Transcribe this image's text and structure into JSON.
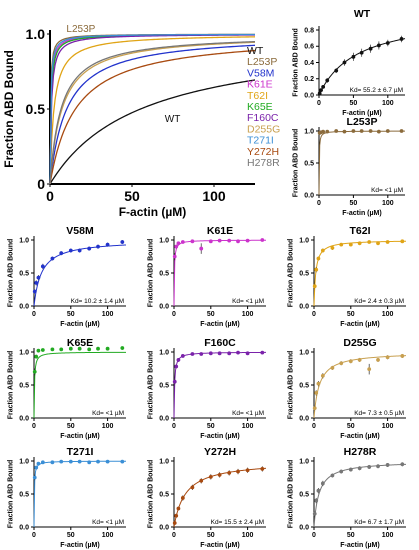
{
  "chart_data": [
    {
      "id": "main",
      "type": "line",
      "title": "",
      "xlabel": "F-actin (µM)",
      "ylabel": "Fraction ABD Bound",
      "xlim": [
        0,
        125
      ],
      "ylim": [
        0,
        1.0
      ],
      "xticks": [
        0,
        50,
        100
      ],
      "yticks": [
        0,
        0.5,
        1.0
      ],
      "ytick_labels": [
        "0",
        "0.5",
        "1.0"
      ],
      "grid": false,
      "legend_position": "right",
      "series": [
        {
          "name": "WT",
          "kd": 55.2,
          "color": "#111111"
        },
        {
          "name": "L253P",
          "kd": 0.3,
          "color": "#8b6b3c"
        },
        {
          "name": "V58M",
          "kd": 10.2,
          "color": "#2233cc"
        },
        {
          "name": "K61E",
          "kd": 0.5,
          "color": "#cc33cc"
        },
        {
          "name": "T62I",
          "kd": 2.4,
          "color": "#e0a416"
        },
        {
          "name": "K65E",
          "kd": 0.6,
          "color": "#22aa22"
        },
        {
          "name": "F160C",
          "kd": 0.8,
          "color": "#7a22aa"
        },
        {
          "name": "D255G",
          "kd": 7.3,
          "color": "#c8a050"
        },
        {
          "name": "T271I",
          "kd": 0.4,
          "color": "#3b8fd6"
        },
        {
          "name": "Y272H",
          "kd": 15.5,
          "color": "#a84a10"
        },
        {
          "name": "H278R",
          "kd": 6.7,
          "color": "#777777"
        }
      ],
      "annotations": [
        {
          "text": "WT",
          "x": 70,
          "y": 0.4
        },
        {
          "text": "L253P",
          "x": 10,
          "y": 1.0
        }
      ]
    },
    {
      "id": "WT",
      "type": "scatter",
      "title": "WT",
      "xlabel": "F-actin (µM)",
      "ylabel": "Fraction ABD Bound",
      "xlim": [
        0,
        125
      ],
      "ylim": [
        0,
        0.8
      ],
      "xticks": [
        0,
        50,
        100
      ],
      "yticks": [
        0,
        0.2,
        0.4,
        0.6,
        0.8
      ],
      "ytick_labels": [
        "0.0",
        "0.2",
        "0.4",
        "0.6",
        "0.8"
      ],
      "kd": 55.2,
      "bmax": 1.0,
      "kd_label": "Kd= 55.2 ± 6.7 µM",
      "color": "#111111",
      "x": [
        1,
        3,
        6,
        12,
        25,
        37,
        50,
        62,
        75,
        87,
        100,
        120
      ],
      "y": [
        0.02,
        0.06,
        0.1,
        0.18,
        0.3,
        0.4,
        0.47,
        0.52,
        0.57,
        0.61,
        0.64,
        0.69
      ],
      "err": [
        0.01,
        0.02,
        0.02,
        0.03,
        0.03,
        0.04,
        0.05,
        0.05,
        0.05,
        0.05,
        0.04,
        0.04
      ]
    },
    {
      "id": "L253P",
      "type": "scatter",
      "title": "L253P",
      "xlabel": "F-actin (µM)",
      "ylabel": "Fraction ABD Bound",
      "xlim": [
        0,
        125
      ],
      "ylim": [
        0,
        1.0
      ],
      "xticks": [
        0,
        50,
        100
      ],
      "yticks": [
        0,
        0.5,
        1.0
      ],
      "ytick_labels": [
        "0.0",
        "0.5",
        "1.0"
      ],
      "kd": 0.3,
      "bmax": 1.0,
      "kd_label": "Kd= <1 µM",
      "color": "#8b6b3c",
      "x": [
        1,
        3,
        6,
        12,
        25,
        37,
        50,
        62,
        75,
        87,
        100,
        120
      ],
      "y": [
        0.97,
        0.98,
        0.99,
        0.99,
        1.0,
        0.99,
        1.0,
        1.0,
        1.0,
        0.99,
        1.0,
        1.0
      ],
      "err": [
        0.02,
        0.01,
        0.01,
        0.01,
        0.01,
        0.01,
        0.01,
        0.01,
        0.01,
        0.01,
        0.01,
        0.01
      ]
    },
    {
      "id": "V58M",
      "type": "scatter",
      "title": "V58M",
      "xlabel": "F-actin (µM)",
      "ylabel": "Fraction ABD Bound",
      "xlim": [
        0,
        125
      ],
      "ylim": [
        0,
        1.0
      ],
      "xticks": [
        0,
        50,
        100
      ],
      "yticks": [
        0,
        0.5,
        1.0
      ],
      "ytick_labels": [
        "0.0",
        "0.5",
        "1.0"
      ],
      "kd": 10.2,
      "bmax": 1.0,
      "kd_label": "Kd= 10.2 ± 1.4 µM",
      "color": "#2233cc",
      "x": [
        1,
        3,
        6,
        12,
        25,
        37,
        50,
        62,
        75,
        87,
        100,
        120
      ],
      "y": [
        0.22,
        0.35,
        0.43,
        0.6,
        0.72,
        0.8,
        0.84,
        0.84,
        0.87,
        0.9,
        0.93,
        0.97
      ],
      "err": [
        0.03,
        0.04,
        0.04,
        0.04,
        0.03,
        0.03,
        0.03,
        0.03,
        0.03,
        0.03,
        0.03,
        0.03
      ]
    },
    {
      "id": "K61E",
      "type": "scatter",
      "title": "K61E",
      "xlabel": "F-actin (µM)",
      "ylabel": "Fraction ABD Bound",
      "xlim": [
        0,
        125
      ],
      "ylim": [
        0,
        1.0
      ],
      "xticks": [
        0,
        50,
        100
      ],
      "yticks": [
        0,
        0.5,
        1.0
      ],
      "ytick_labels": [
        "0.0",
        "0.5",
        "1.0"
      ],
      "kd": 0.5,
      "bmax": 1.0,
      "kd_label": "Kd= <1 µM",
      "color": "#cc33cc",
      "x": [
        1,
        3,
        6,
        12,
        25,
        37,
        50,
        62,
        75,
        87,
        100,
        120
      ],
      "y": [
        0.75,
        0.9,
        0.95,
        0.97,
        0.98,
        0.87,
        0.98,
        0.99,
        0.99,
        0.98,
        0.99,
        1.0
      ],
      "err": [
        0.05,
        0.03,
        0.02,
        0.02,
        0.02,
        0.08,
        0.02,
        0.02,
        0.02,
        0.02,
        0.02,
        0.02
      ]
    },
    {
      "id": "T62I",
      "type": "scatter",
      "title": "T62I",
      "xlabel": "F-actin (µM)",
      "ylabel": "Fraction ABD Bound",
      "xlim": [
        0,
        125
      ],
      "ylim": [
        0,
        1.0
      ],
      "xticks": [
        0,
        50,
        100
      ],
      "yticks": [
        0,
        0.5,
        1.0
      ],
      "ytick_labels": [
        "0.0",
        "0.5",
        "1.0"
      ],
      "kd": 2.4,
      "bmax": 1.0,
      "kd_label": "Kd= 2.4 ± 0.3 µM",
      "color": "#e0a416",
      "x": [
        1,
        3,
        6,
        12,
        25,
        37,
        50,
        62,
        75,
        87,
        100,
        120
      ],
      "y": [
        0.3,
        0.55,
        0.72,
        0.84,
        0.88,
        0.93,
        0.93,
        0.95,
        0.97,
        0.95,
        0.97,
        0.98
      ],
      "err": [
        0.03,
        0.04,
        0.03,
        0.03,
        0.03,
        0.02,
        0.02,
        0.02,
        0.02,
        0.02,
        0.02,
        0.02
      ]
    },
    {
      "id": "K65E",
      "type": "scatter",
      "title": "K65E",
      "xlabel": "F-actin (µM)",
      "ylabel": "Fraction ABD Bound",
      "xlim": [
        0,
        125
      ],
      "ylim": [
        0,
        1.0
      ],
      "xticks": [
        0,
        50,
        100
      ],
      "yticks": [
        0,
        0.5,
        1.0
      ],
      "ytick_labels": [
        "0.0",
        "0.5",
        "1.0"
      ],
      "kd": 0.6,
      "bmax": 1.0,
      "kd_label": "Kd= <1 µM",
      "color": "#22aa22",
      "x": [
        1,
        3,
        6,
        12,
        25,
        37,
        50,
        62,
        75,
        87,
        100,
        120
      ],
      "y": [
        0.7,
        0.93,
        1.02,
        1.03,
        1.04,
        1.04,
        1.05,
        1.05,
        1.04,
        1.05,
        1.05,
        1.06
      ],
      "err": [
        0.05,
        0.03,
        0.02,
        0.02,
        0.02,
        0.02,
        0.02,
        0.02,
        0.02,
        0.02,
        0.02,
        0.02
      ]
    },
    {
      "id": "F160C",
      "type": "scatter",
      "title": "F160C",
      "xlabel": "F-actin (µM)",
      "ylabel": "Fraction ABD Bound",
      "xlim": [
        0,
        125
      ],
      "ylim": [
        0,
        1.0
      ],
      "xticks": [
        0,
        50,
        100
      ],
      "yticks": [
        0,
        0.5,
        1.0
      ],
      "ytick_labels": [
        "0.0",
        "0.5",
        "1.0"
      ],
      "kd": 0.8,
      "bmax": 1.0,
      "kd_label": "Kd= <1 µM",
      "color": "#7a22aa",
      "x": [
        1,
        3,
        6,
        12,
        25,
        37,
        50,
        62,
        75,
        87,
        100,
        120
      ],
      "y": [
        0.55,
        0.78,
        0.88,
        0.94,
        0.97,
        0.97,
        0.98,
        0.98,
        0.98,
        0.99,
        0.98,
        0.99
      ],
      "err": [
        0.04,
        0.03,
        0.03,
        0.02,
        0.02,
        0.02,
        0.02,
        0.02,
        0.02,
        0.02,
        0.02,
        0.02
      ]
    },
    {
      "id": "D255G",
      "type": "scatter",
      "title": "D255G",
      "xlabel": "F-actin (µM)",
      "ylabel": "Fraction ABD Bound",
      "xlim": [
        0,
        125
      ],
      "ylim": [
        0,
        1.0
      ],
      "xticks": [
        0,
        50,
        100
      ],
      "yticks": [
        0,
        0.5,
        1.0
      ],
      "ytick_labels": [
        "0.0",
        "0.5",
        "1.0"
      ],
      "kd": 7.3,
      "bmax": 1.0,
      "kd_label": "Kd= 7.3 ± 0.5 µM",
      "color": "#c8a050",
      "x": [
        1,
        3,
        6,
        12,
        25,
        37,
        50,
        62,
        75,
        87,
        100,
        120
      ],
      "y": [
        0.15,
        0.38,
        0.52,
        0.64,
        0.76,
        0.83,
        0.86,
        0.88,
        0.74,
        0.88,
        0.92,
        0.94
      ],
      "err": [
        0.03,
        0.04,
        0.04,
        0.04,
        0.03,
        0.03,
        0.03,
        0.03,
        0.08,
        0.03,
        0.03,
        0.03
      ]
    },
    {
      "id": "T271I",
      "type": "scatter",
      "title": "T271I",
      "xlabel": "F-actin (µM)",
      "ylabel": "Fraction ABD Bound",
      "xlim": [
        0,
        125
      ],
      "ylim": [
        0,
        1.0
      ],
      "xticks": [
        0,
        50,
        100
      ],
      "yticks": [
        0,
        0.5,
        1.0
      ],
      "ytick_labels": [
        "0.0",
        "0.5",
        "1.0"
      ],
      "kd": 0.4,
      "bmax": 1.0,
      "kd_label": "Kd= <1 µM",
      "color": "#3b8fd6",
      "x": [
        1,
        3,
        6,
        12,
        25,
        37,
        50,
        62,
        75,
        87,
        100,
        120
      ],
      "y": [
        0.75,
        0.9,
        0.96,
        0.98,
        0.98,
        0.99,
        0.99,
        0.99,
        0.98,
        0.99,
        0.99,
        0.99
      ],
      "err": [
        0.04,
        0.03,
        0.02,
        0.02,
        0.02,
        0.02,
        0.02,
        0.02,
        0.02,
        0.02,
        0.02,
        0.02
      ]
    },
    {
      "id": "Y272H",
      "type": "scatter",
      "title": "Y272H",
      "xlabel": "F-actin (µM)",
      "ylabel": "Fraction ABD Bound",
      "xlim": [
        0,
        125
      ],
      "ylim": [
        0,
        1.0
      ],
      "xticks": [
        0,
        50,
        100
      ],
      "yticks": [
        0,
        0.5,
        1.0
      ],
      "ytick_labels": [
        "0.0",
        "0.5",
        "1.0"
      ],
      "kd": 15.5,
      "bmax": 1.0,
      "kd_label": "Kd= 15.5 ± 2.4 µM",
      "color": "#a84a10",
      "x": [
        1,
        3,
        6,
        12,
        25,
        37,
        50,
        62,
        75,
        87,
        100,
        120
      ],
      "y": [
        0.06,
        0.17,
        0.28,
        0.44,
        0.6,
        0.7,
        0.76,
        0.79,
        0.82,
        0.84,
        0.86,
        0.88
      ],
      "err": [
        0.02,
        0.03,
        0.03,
        0.04,
        0.04,
        0.04,
        0.04,
        0.04,
        0.04,
        0.04,
        0.04,
        0.04
      ]
    },
    {
      "id": "H278R",
      "type": "scatter",
      "title": "H278R",
      "xlabel": "F-actin (µM)",
      "ylabel": "Fraction ABD Bound",
      "xlim": [
        0,
        125
      ],
      "ylim": [
        0,
        1.0
      ],
      "xticks": [
        0,
        50,
        100
      ],
      "yticks": [
        0,
        0.5,
        1.0
      ],
      "ytick_labels": [
        "0.0",
        "0.5",
        "1.0"
      ],
      "kd": 6.7,
      "bmax": 1.0,
      "kd_label": "Kd= 6.7 ± 1.7 µM",
      "color": "#777777",
      "x": [
        1,
        3,
        6,
        12,
        25,
        37,
        50,
        62,
        75,
        87,
        100,
        120
      ],
      "y": [
        0.2,
        0.4,
        0.55,
        0.66,
        0.78,
        0.84,
        0.87,
        0.89,
        0.91,
        0.92,
        0.94,
        0.95
      ],
      "err": [
        0.03,
        0.04,
        0.04,
        0.04,
        0.03,
        0.03,
        0.03,
        0.03,
        0.03,
        0.03,
        0.03,
        0.03
      ]
    }
  ]
}
